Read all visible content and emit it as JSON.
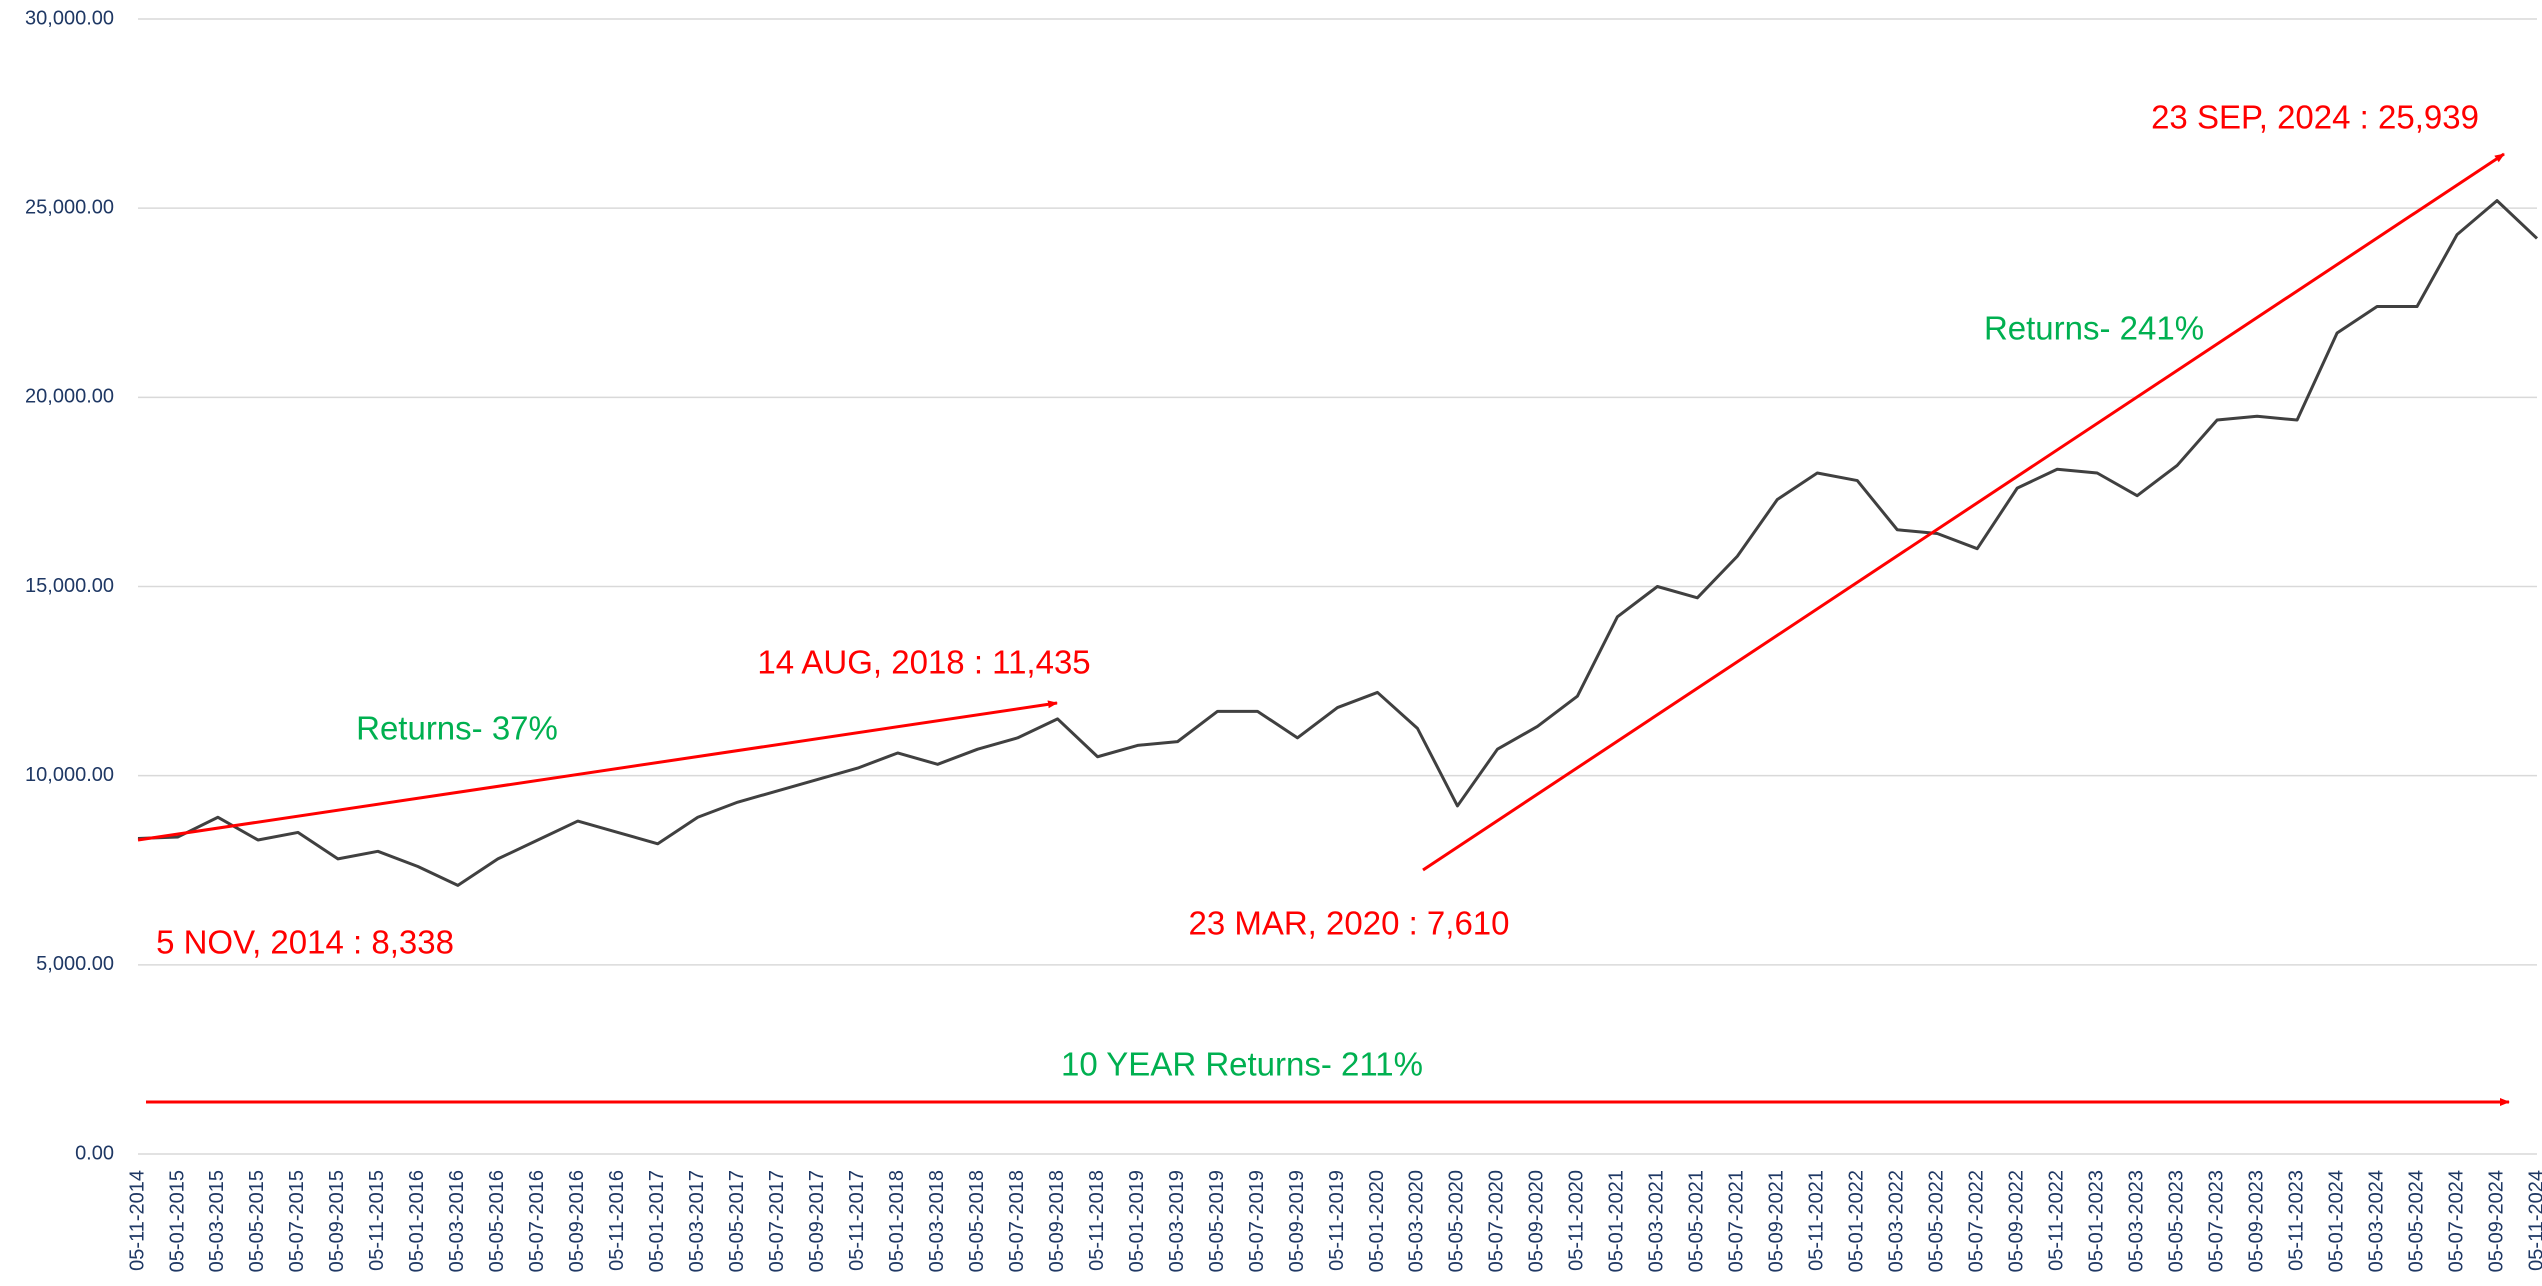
{
  "chart_data": {
    "type": "line",
    "categories": [
      "05-11-2014",
      "05-01-2015",
      "05-03-2015",
      "05-05-2015",
      "05-07-2015",
      "05-09-2015",
      "05-11-2015",
      "05-01-2016",
      "05-03-2016",
      "05-05-2016",
      "05-07-2016",
      "05-09-2016",
      "05-11-2016",
      "05-01-2017",
      "05-03-2017",
      "05-05-2017",
      "05-07-2017",
      "05-09-2017",
      "05-11-2017",
      "05-01-2018",
      "05-03-2018",
      "05-05-2018",
      "05-07-2018",
      "05-09-2018",
      "05-11-2018",
      "05-01-2019",
      "05-03-2019",
      "05-05-2019",
      "05-07-2019",
      "05-09-2019",
      "05-11-2019",
      "05-01-2020",
      "05-03-2020",
      "05-05-2020",
      "05-07-2020",
      "05-09-2020",
      "05-11-2020",
      "05-01-2021",
      "05-03-2021",
      "05-05-2021",
      "05-07-2021",
      "05-09-2021",
      "05-11-2021",
      "05-01-2022",
      "05-03-2022",
      "05-05-2022",
      "05-07-2022",
      "05-09-2022",
      "05-11-2022",
      "05-01-2023",
      "05-03-2023",
      "05-05-2023",
      "05-07-2023",
      "05-09-2023",
      "05-11-2023",
      "05-01-2024",
      "05-03-2024",
      "05-05-2024",
      "05-07-2024",
      "05-09-2024",
      "05-11-2024"
    ],
    "values": [
      8338,
      8380,
      8900,
      8300,
      8500,
      7800,
      8000,
      7600,
      7100,
      7800,
      8300,
      8800,
      8500,
      8200,
      8900,
      9300,
      9600,
      9900,
      10200,
      10600,
      10300,
      10700,
      11000,
      11500,
      10500,
      10800,
      10900,
      11700,
      11700,
      11000,
      11800,
      12200,
      11250,
      9200,
      10700,
      11300,
      12100,
      14200,
      15000,
      14700,
      15800,
      17300,
      18000,
      17800,
      16500,
      16400,
      16000,
      17600,
      18100,
      18000,
      17400,
      18200,
      19400,
      19500,
      19400,
      21700,
      22400,
      22400,
      24300,
      25200,
      24200
    ],
    "color": "#404040",
    "ylim": [
      0,
      30000
    ],
    "yticks": [
      {
        "value": 0,
        "label": "0.00"
      },
      {
        "value": 5000,
        "label": "5,000.00"
      },
      {
        "value": 10000,
        "label": "10,000.00"
      },
      {
        "value": 15000,
        "label": "15,000.00"
      },
      {
        "value": 20000,
        "label": "20,000.00"
      },
      {
        "value": 25000,
        "label": "25,000.00"
      },
      {
        "value": 30000,
        "label": "30,000.00"
      }
    ],
    "grid": true,
    "annotations": [
      "23 SEP, 2024 : 25,939",
      "Returns- 241%",
      "14 AUG, 2018 : 11,435",
      "Returns- 37%",
      "5 NOV, 2014 : 8,338",
      "23 MAR, 2020 : 7,610",
      "10 YEAR Returns- 211%"
    ]
  }
}
